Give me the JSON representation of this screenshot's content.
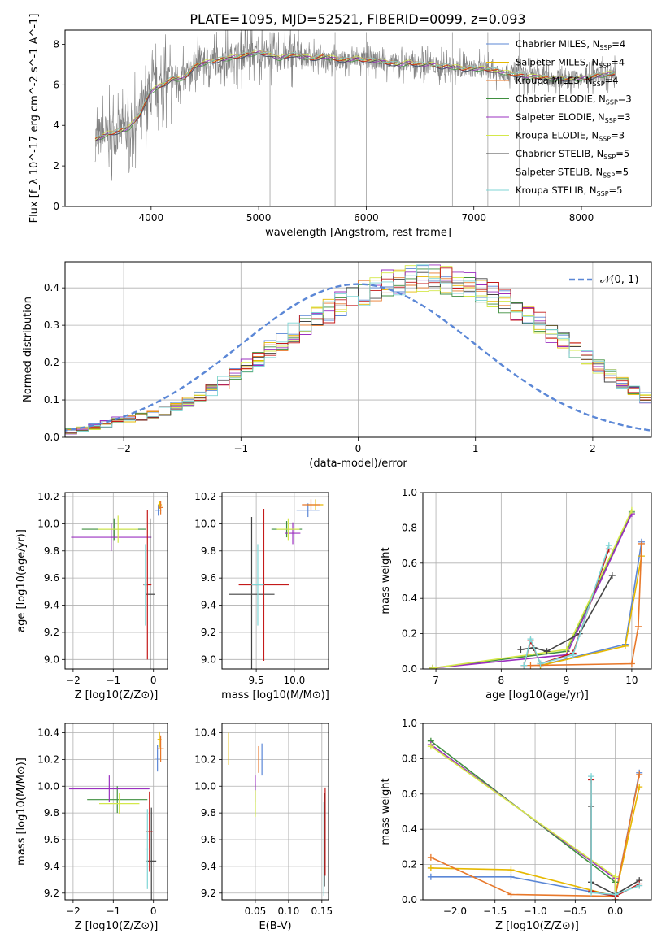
{
  "title": "PLATE=1095, MJD=52521, FIBERID=0099, z=0.093",
  "colors": {
    "Chabrier MILES": "#5b87d6",
    "Salpeter MILES": "#e6b800",
    "Kroupa MILES": "#e8782a",
    "Chabrier ELODIE": "#3f8f3f",
    "Salpeter ELODIE": "#9b30c0",
    "Kroupa ELODIE": "#d4e84a",
    "Chabrier STELIB": "#444444",
    "Salpeter STELIB": "#c41a1a",
    "Kroupa STELIB": "#7fd6d6",
    "data": "#808080"
  },
  "legend_labels": {
    "series": [
      "Chabrier MILES, N",
      "Salpeter MILES, N",
      "Kroupa MILES, N",
      "Chabrier ELODIE, N",
      "Salpeter ELODIE, N",
      "Kroupa ELODIE, N",
      "Chabrier STELIB, N",
      "Salpeter STELIB, N",
      "Kroupa STELIB, N"
    ],
    "sub": "SSP",
    "counts": [
      "=4",
      "=4",
      "=4",
      "=3",
      "=3",
      "=3",
      "=5",
      "=5",
      "=5"
    ],
    "normal": "𝒩(0, 1)"
  },
  "chart_data": [
    {
      "id": "spectrum",
      "type": "line",
      "xlabel": "wavelength [Angstrom, rest frame]",
      "ylabel": "Flux [f_λ 10^-17 erg cm^-2 s^-1 A^-1]",
      "xlim": [
        3200,
        8650
      ],
      "ylim": [
        0,
        8.7
      ],
      "xticks": [
        4000,
        5000,
        6000,
        7000,
        8000
      ],
      "yticks": [
        0,
        2,
        4,
        6,
        8
      ],
      "grid": false,
      "legend": "right",
      "continuum": {
        "x": [
          3480,
          3600,
          3700,
          3800,
          3900,
          4000,
          4100,
          4200,
          4300,
          4400,
          4500,
          4600,
          4700,
          4800,
          4900,
          5000,
          5100,
          5200,
          5300,
          5400,
          5500,
          5600,
          5700,
          5800,
          5900,
          6000,
          6100,
          6200,
          6300,
          6400,
          6500,
          6600,
          6700,
          6800,
          6900,
          7000,
          7100,
          7200,
          7300,
          7400,
          7500,
          7600,
          7700,
          7800,
          7900,
          8000,
          8100,
          8200,
          8320
        ],
        "y": [
          3.3,
          3.6,
          3.7,
          3.9,
          4.6,
          5.7,
          6.0,
          6.3,
          6.3,
          6.9,
          7.1,
          7.2,
          7.3,
          7.4,
          7.5,
          7.6,
          7.5,
          7.3,
          7.5,
          7.4,
          7.3,
          7.4,
          7.3,
          7.2,
          7.3,
          7.2,
          7.2,
          7.1,
          7.0,
          7.1,
          7.0,
          7.0,
          6.9,
          6.9,
          6.8,
          6.8,
          6.8,
          6.7,
          6.6,
          6.5,
          6.4,
          6.4,
          6.3,
          6.3,
          6.3,
          6.3,
          6.4,
          6.5,
          6.6
        ]
      }
    },
    {
      "id": "residuals",
      "type": "histogram",
      "xlabel": "(data-model)/error",
      "ylabel": "Normed distribution",
      "xlim": [
        -2.5,
        2.5
      ],
      "ylim": [
        0,
        0.47
      ],
      "xticks": [
        -2,
        -1,
        0,
        1,
        2
      ],
      "yticks": [
        0,
        0.1,
        0.2,
        0.3,
        0.4
      ],
      "grid": true,
      "legend": "top-right",
      "bin_width": 0.1,
      "bin_start": -2.6,
      "profile": [
        0.012,
        0.016,
        0.021,
        0.028,
        0.036,
        0.045,
        0.05,
        0.055,
        0.06,
        0.07,
        0.081,
        0.095,
        0.11,
        0.127,
        0.147,
        0.169,
        0.19,
        0.213,
        0.235,
        0.258,
        0.28,
        0.3,
        0.32,
        0.34,
        0.36,
        0.375,
        0.39,
        0.4,
        0.41,
        0.42,
        0.425,
        0.427,
        0.425,
        0.42,
        0.415,
        0.405,
        0.395,
        0.38,
        0.365,
        0.345,
        0.325,
        0.305,
        0.282,
        0.258,
        0.235,
        0.21,
        0.188,
        0.165,
        0.143,
        0.124,
        0.106,
        0.09,
        0.077,
        0.066,
        0.056,
        0.047,
        0.04,
        0.035,
        0.03,
        0.026,
        0.023,
        0.02
      ],
      "normal_curve": {
        "name": "𝒩(0, 1)",
        "mean": 0,
        "sigma": 1,
        "amplitude": 0.41
      }
    },
    {
      "id": "age_vs_Z",
      "type": "errorbar",
      "xlabel": "Z [log10(Z/Z⊙)]",
      "ylabel": "age [log10(age/yr)]",
      "xlim": [
        -2.2,
        0.35
      ],
      "ylim": [
        8.93,
        10.23
      ],
      "xticks": [
        -2,
        -1,
        0
      ],
      "yticks": [
        9.0,
        9.2,
        9.4,
        9.6,
        9.8,
        10.0,
        10.2
      ],
      "grid": true,
      "points": [
        {
          "series": "Chabrier MILES",
          "x": 0.12,
          "y": 10.1,
          "xerr": 0.08,
          "yerr": 0.04
        },
        {
          "series": "Salpeter MILES",
          "x": 0.16,
          "y": 10.14,
          "xerr": 0.05,
          "yerr": 0.03
        },
        {
          "series": "Kroupa MILES",
          "x": 0.18,
          "y": 10.12,
          "xerr": 0.06,
          "yerr": 0.05
        },
        {
          "series": "Chabrier ELODIE",
          "x": -0.98,
          "y": 9.96,
          "xerr": 0.8,
          "yerr": 0.08
        },
        {
          "series": "Salpeter ELODIE",
          "x": -1.05,
          "y": 9.9,
          "xerr": 1.0,
          "yerr": 0.1
        },
        {
          "series": "Kroupa ELODIE",
          "x": -0.88,
          "y": 9.96,
          "xerr": 0.5,
          "yerr": 0.1
        },
        {
          "series": "Chabrier STELIB",
          "x": -0.08,
          "y": 9.48,
          "xerr": 0.12,
          "yerr": 0.56
        },
        {
          "series": "Salpeter STELIB",
          "x": -0.15,
          "y": 9.55,
          "xerr": 0.1,
          "yerr": 0.55
        },
        {
          "series": "Kroupa STELIB",
          "x": -0.2,
          "y": 9.55,
          "xerr": 0.04,
          "yerr": 0.3
        }
      ]
    },
    {
      "id": "age_vs_mass",
      "type": "errorbar",
      "xlabel": "mass [log10(M/M⊙)]",
      "ylabel": "",
      "xlim": [
        9.05,
        10.45
      ],
      "ylim": [
        8.93,
        10.23
      ],
      "xticks": [
        9.5,
        10.0
      ],
      "yticks": [
        9.0,
        9.2,
        9.4,
        9.6,
        9.8,
        10.0,
        10.2
      ],
      "grid": true,
      "points": [
        {
          "series": "Chabrier MILES",
          "x": 10.18,
          "y": 10.1,
          "xerr": 0.15,
          "yerr": 0.05
        },
        {
          "series": "Salpeter MILES",
          "x": 10.28,
          "y": 10.14,
          "xerr": 0.1,
          "yerr": 0.04
        },
        {
          "series": "Kroupa MILES",
          "x": 10.22,
          "y": 10.14,
          "xerr": 0.12,
          "yerr": 0.04
        },
        {
          "series": "Chabrier ELODIE",
          "x": 9.9,
          "y": 9.96,
          "xerr": 0.2,
          "yerr": 0.06
        },
        {
          "series": "Salpeter ELODIE",
          "x": 9.98,
          "y": 9.93,
          "xerr": 0.1,
          "yerr": 0.08
        },
        {
          "series": "Kroupa ELODIE",
          "x": 9.92,
          "y": 9.96,
          "xerr": 0.15,
          "yerr": 0.08
        },
        {
          "series": "Chabrier STELIB",
          "x": 9.44,
          "y": 9.48,
          "xerr": 0.3,
          "yerr": 0.57
        },
        {
          "series": "Salpeter STELIB",
          "x": 9.6,
          "y": 9.55,
          "xerr": 0.33,
          "yerr": 0.56
        },
        {
          "series": "Kroupa STELIB",
          "x": 9.52,
          "y": 9.55,
          "xerr": 0.08,
          "yerr": 0.3
        }
      ]
    },
    {
      "id": "weight_vs_age",
      "type": "line",
      "xlabel": "age [log10(age/yr)]",
      "ylabel": "mass weight",
      "xlim": [
        6.8,
        10.3
      ],
      "ylim": [
        0,
        1.0
      ],
      "xticks": [
        7,
        8,
        9,
        10
      ],
      "yticks": [
        0,
        0.2,
        0.4,
        0.6,
        0.8,
        1.0
      ],
      "grid": true,
      "series": [
        {
          "name": "Chabrier MILES",
          "x": [
            8.6,
            9.9,
            10.15
          ],
          "y": [
            0.02,
            0.14,
            0.72
          ]
        },
        {
          "name": "Salpeter MILES",
          "x": [
            8.6,
            9.9,
            10.15
          ],
          "y": [
            0.02,
            0.13,
            0.64
          ]
        },
        {
          "name": "Kroupa MILES",
          "x": [
            8.45,
            10.0,
            10.1,
            10.15
          ],
          "y": [
            0.02,
            0.03,
            0.24,
            0.71
          ]
        },
        {
          "name": "Chabrier ELODIE",
          "x": [
            6.95,
            9.0,
            10.0
          ],
          "y": [
            0.005,
            0.1,
            0.89
          ]
        },
        {
          "name": "Salpeter ELODIE",
          "x": [
            6.95,
            9.0,
            10.0
          ],
          "y": [
            0.005,
            0.08,
            0.88
          ]
        },
        {
          "name": "Kroupa ELODIE",
          "x": [
            6.95,
            9.0,
            10.0
          ],
          "y": [
            0.005,
            0.11,
            0.9
          ]
        },
        {
          "name": "Chabrier STELIB",
          "x": [
            8.3,
            8.5,
            8.7,
            9.2,
            9.7
          ],
          "y": [
            0.11,
            0.12,
            0.1,
            0.2,
            0.53
          ]
        },
        {
          "name": "Salpeter STELIB",
          "x": [
            8.35,
            8.45,
            8.6,
            9.1,
            9.65
          ],
          "y": [
            0.02,
            0.16,
            0.03,
            0.09,
            0.68
          ]
        },
        {
          "name": "Kroupa STELIB",
          "x": [
            8.35,
            8.45,
            8.6,
            9.1,
            9.65
          ],
          "y": [
            0.02,
            0.17,
            0.03,
            0.08,
            0.7
          ]
        }
      ]
    },
    {
      "id": "mass_vs_Z",
      "type": "errorbar",
      "xlabel": "Z [log10(Z/Z⊙)]",
      "ylabel": "mass [log10(M/M⊙)]",
      "xlim": [
        -2.2,
        0.35
      ],
      "ylim": [
        9.15,
        10.47
      ],
      "xticks": [
        -2,
        -1,
        0
      ],
      "yticks": [
        9.2,
        9.4,
        9.6,
        9.8,
        10.0,
        10.2,
        10.4
      ],
      "grid": true,
      "points": [
        {
          "series": "Chabrier MILES",
          "x": 0.1,
          "y": 10.21,
          "xerr": 0.08,
          "yerr": 0.1
        },
        {
          "series": "Salpeter MILES",
          "x": 0.15,
          "y": 10.35,
          "xerr": 0.05,
          "yerr": 0.06
        },
        {
          "series": "Kroupa MILES",
          "x": 0.18,
          "y": 10.28,
          "xerr": 0.08,
          "yerr": 0.1
        },
        {
          "series": "Chabrier ELODIE",
          "x": -0.9,
          "y": 9.9,
          "xerr": 0.75,
          "yerr": 0.1
        },
        {
          "series": "Salpeter ELODIE",
          "x": -1.1,
          "y": 9.98,
          "xerr": 1.0,
          "yerr": 0.1
        },
        {
          "series": "Kroupa ELODIE",
          "x": -0.85,
          "y": 9.87,
          "xerr": 0.5,
          "yerr": 0.08
        },
        {
          "series": "Chabrier STELIB",
          "x": -0.05,
          "y": 9.44,
          "xerr": 0.12,
          "yerr": 0.4
        },
        {
          "series": "Salpeter STELIB",
          "x": -0.1,
          "y": 9.66,
          "xerr": 0.08,
          "yerr": 0.3
        },
        {
          "series": "Kroupa STELIB",
          "x": -0.15,
          "y": 9.53,
          "xerr": 0.06,
          "yerr": 0.3
        }
      ]
    },
    {
      "id": "mass_vs_ebv",
      "type": "errorbar",
      "xlabel": "E(B-V)",
      "ylabel": "",
      "xlim": [
        0.0,
        0.16
      ],
      "ylim": [
        9.15,
        10.47
      ],
      "xticks": [
        0.05,
        0.1,
        0.15
      ],
      "yticks": [
        9.2,
        9.4,
        9.6,
        9.8,
        10.0,
        10.2,
        10.4
      ],
      "grid": true,
      "points": [
        {
          "series": "Chabrier MILES",
          "x": 0.06,
          "y": 10.2,
          "xerr": 0,
          "yerr": 0.12
        },
        {
          "series": "Salpeter MILES",
          "x": 0.01,
          "y": 10.28,
          "xerr": 0,
          "yerr": 0.12
        },
        {
          "series": "Kroupa MILES",
          "x": 0.055,
          "y": 10.2,
          "xerr": 0,
          "yerr": 0.1
        },
        {
          "series": "Chabrier ELODIE",
          "x": 0.05,
          "y": 9.9,
          "xerr": 0,
          "yerr": 0.12
        },
        {
          "series": "Salpeter ELODIE",
          "x": 0.05,
          "y": 9.98,
          "xerr": 0,
          "yerr": 0.1
        },
        {
          "series": "Kroupa ELODIE",
          "x": 0.05,
          "y": 9.87,
          "xerr": 0,
          "yerr": 0.1
        },
        {
          "series": "Chabrier STELIB",
          "x": 0.154,
          "y": 9.6,
          "xerr": 0,
          "yerr": 0.35
        },
        {
          "series": "Salpeter STELIB",
          "x": 0.155,
          "y": 9.66,
          "xerr": 0,
          "yerr": 0.33
        },
        {
          "series": "Kroupa STELIB",
          "x": 0.153,
          "y": 9.53,
          "xerr": 0,
          "yerr": 0.35
        }
      ]
    },
    {
      "id": "weight_vs_Z",
      "type": "line",
      "xlabel": "Z [log10(Z/Z⊙)]",
      "ylabel": "mass weight",
      "xlim": [
        -2.4,
        0.45
      ],
      "ylim": [
        0,
        1.0
      ],
      "xticks": [
        -2.0,
        -1.5,
        -1.0,
        -0.5,
        0.0
      ],
      "yticks": [
        0,
        0.2,
        0.4,
        0.6,
        0.8,
        1.0
      ],
      "grid": true,
      "series": [
        {
          "name": "Chabrier MILES",
          "x": [
            -2.3,
            -1.3,
            0.0,
            0.3
          ],
          "y": [
            0.13,
            0.13,
            0.02,
            0.72
          ]
        },
        {
          "name": "Salpeter MILES",
          "x": [
            -2.3,
            -1.3,
            0.0,
            0.3
          ],
          "y": [
            0.18,
            0.17,
            0.02,
            0.64
          ]
        },
        {
          "name": "Kroupa MILES",
          "x": [
            -2.3,
            -1.3,
            0.0,
            0.3
          ],
          "y": [
            0.24,
            0.03,
            0.02,
            0.71
          ]
        },
        {
          "name": "Chabrier ELODIE",
          "x": [
            -2.3,
            0.0,
            0.0
          ],
          "y": [
            0.9,
            0.1,
            0.0
          ]
        },
        {
          "name": "Salpeter ELODIE",
          "x": [
            -2.3,
            0.0,
            0.0
          ],
          "y": [
            0.88,
            0.12,
            0.0
          ]
        },
        {
          "name": "Kroupa ELODIE",
          "x": [
            -2.3,
            0.0,
            0.0
          ],
          "y": [
            0.87,
            0.13,
            0.0
          ]
        },
        {
          "name": "Chabrier STELIB",
          "x": [
            -0.3,
            -0.3,
            0.0,
            0.3
          ],
          "y": [
            0.53,
            0.1,
            0.03,
            0.11
          ]
        },
        {
          "name": "Salpeter STELIB",
          "x": [
            -0.3,
            -0.3,
            0.0,
            0.3
          ],
          "y": [
            0.68,
            0.05,
            0.02,
            0.09
          ]
        },
        {
          "name": "Kroupa STELIB",
          "x": [
            -0.3,
            -0.3,
            0.0,
            0.3
          ],
          "y": [
            0.7,
            0.04,
            0.03,
            0.08
          ]
        }
      ]
    }
  ]
}
